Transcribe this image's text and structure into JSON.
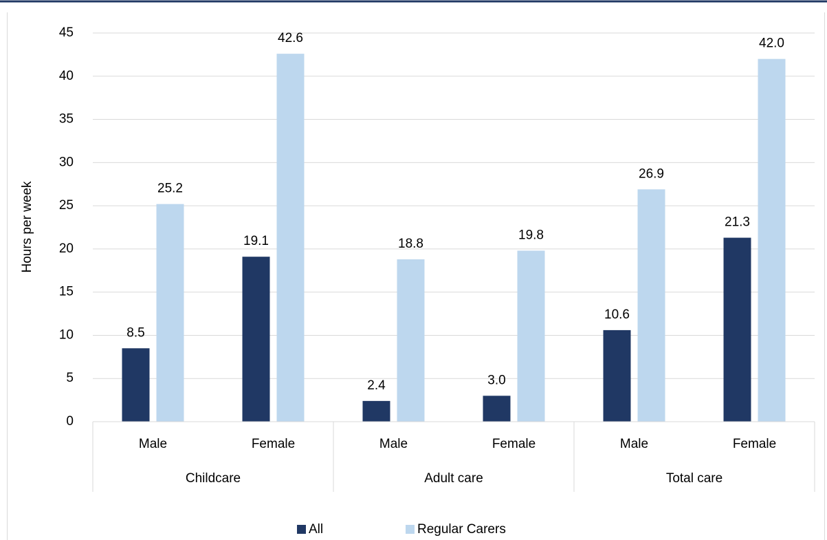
{
  "chart_data": {
    "type": "bar",
    "y_label": "Hours per week",
    "groups": [
      "Childcare",
      "Adult care",
      "Total care"
    ],
    "categories": [
      "Male",
      "Female",
      "Male",
      "Female",
      "Male",
      "Female"
    ],
    "series": [
      {
        "name": "All",
        "color": "#203864",
        "values": [
          8.5,
          19.1,
          2.4,
          3,
          10.6,
          21.3
        ],
        "value_labels": [
          "8.5",
          "19.1",
          "2.4",
          "3.0",
          "10.6",
          "21.3"
        ]
      },
      {
        "name": "Regular Carers",
        "color": "#bdd7ee",
        "values": [
          25.2,
          42.6,
          18.8,
          19.8,
          26.9,
          42
        ],
        "value_labels": [
          "25.2",
          "42.6",
          "18.8",
          "19.8",
          "26.9",
          "42.0"
        ]
      }
    ],
    "ylim": [
      0,
      45
    ],
    "yticks": [
      0,
      5,
      10,
      15,
      20,
      25,
      30,
      35,
      40,
      45
    ],
    "grid": true
  }
}
